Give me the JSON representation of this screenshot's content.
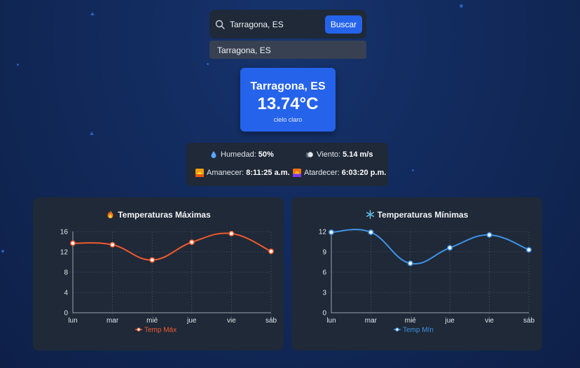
{
  "search": {
    "value": "Tarragona, ES",
    "button": "Buscar",
    "suggestion": "Tarragona, ES"
  },
  "city": {
    "name": "Tarragona, ES",
    "temp": "13.74°C",
    "desc": "cielo claro"
  },
  "details": {
    "humidity_label": "Humedad:",
    "humidity_value": "50%",
    "wind_label": "Viento:",
    "wind_value": "5.14 m/s",
    "sunrise_label": "Amanecer:",
    "sunrise_value": "8:11:25 a.m.",
    "sunset_label": "Atardecer:",
    "sunset_value": "6:03:20 p.m."
  },
  "colors": {
    "accent": "#2563eb",
    "max_line": "#f05a2f",
    "min_line": "#3f93e6"
  },
  "chart_data": [
    {
      "type": "line",
      "title": "Temperaturas Máximas",
      "categories": [
        "lun",
        "mar",
        "mié",
        "jue",
        "vie",
        "sáb"
      ],
      "series": [
        {
          "name": "Temp Máx",
          "values": [
            13.7,
            13.4,
            10.4,
            13.9,
            15.6,
            12.1
          ]
        }
      ],
      "yticks": [
        0,
        4,
        8,
        12,
        16
      ],
      "ylim": [
        0,
        16
      ],
      "grid": true,
      "legend": "bottom"
    },
    {
      "type": "line",
      "title": "Temperaturas Mínimas",
      "categories": [
        "lun",
        "mar",
        "mié",
        "jue",
        "vie",
        "sáb"
      ],
      "series": [
        {
          "name": "Temp Mín",
          "values": [
            11.9,
            11.9,
            7.3,
            9.6,
            11.5,
            9.3
          ]
        }
      ],
      "yticks": [
        0,
        3,
        6,
        9,
        12
      ],
      "ylim": [
        0,
        12
      ],
      "grid": true,
      "legend": "bottom"
    }
  ]
}
